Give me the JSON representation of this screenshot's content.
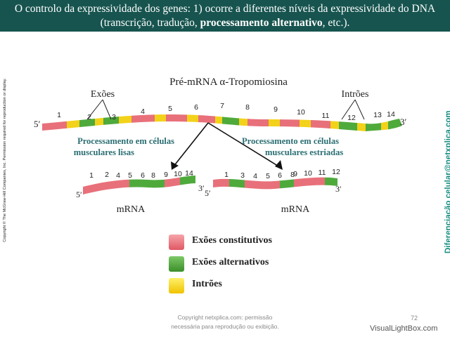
{
  "header": {
    "title_line1": "O controlo da expressividade dos genes: 1) ocorre a diferentes níveis da expressividade do DNA",
    "title_line2_pre": "(transcrição, tradução, ",
    "title_line2_bold": "processamento alternativo",
    "title_line2_post": ", etc.)."
  },
  "copyright_side": "Copyright © The McGraw-Hill Companies, Inc. Permission required for reproduction or display.",
  "side_credit": "Diferenciação celular@netxplica.com",
  "diagram": {
    "title": "Pré-mRNA α-Tropomiosina",
    "exons_label": "Exões",
    "introns_label": "Intrões",
    "five_prime": "5′",
    "three_prime": "3′",
    "pre_mrna_numbers": [
      "1",
      "2",
      "3",
      "4",
      "5",
      "6",
      "7",
      "8",
      "9",
      "10",
      "11",
      "12",
      "13",
      "14"
    ],
    "left_process_line1": "Processamento em células",
    "left_process_line2": "musculares lisas",
    "right_process_line1": "Processamento em células",
    "right_process_line2": "musculares estriadas",
    "left_mrna_numbers": [
      "1",
      "2",
      "4",
      "5",
      "6",
      "8",
      "9",
      "10",
      "14"
    ],
    "right_mrna_numbers": [
      "1",
      "3",
      "4",
      "5",
      "6",
      "8",
      "9",
      "10",
      "11",
      "12"
    ],
    "mrna_label": "mRNA"
  },
  "legend": {
    "constitutive": "Exões constitutivos",
    "alternative": "Exões alternativos",
    "introns": "Intrões"
  },
  "colors": {
    "header_bg": "#17544f",
    "constitutive": "#e8707a",
    "alternative": "#4faa3c",
    "intron": "#f2d21a",
    "side_credit": "#1a8f84"
  },
  "footer": {
    "copyright_line1": "Copyright netxplica.com: permissão",
    "copyright_line2": "necessária para reprodução ou exibição.",
    "page_number": "72",
    "watermark": "VisualLightBox.com"
  }
}
